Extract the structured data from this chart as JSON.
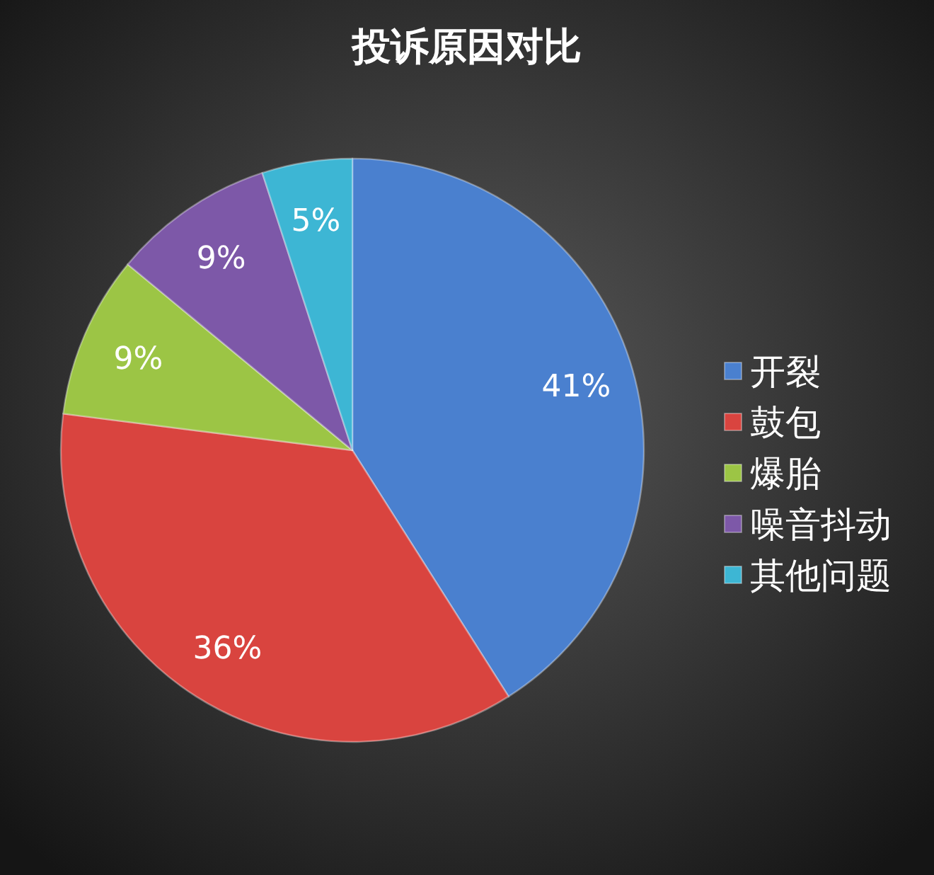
{
  "chart_data": {
    "type": "pie",
    "title": "投诉原因对比",
    "categories": [
      "开裂",
      "鼓包",
      "爆胎",
      "噪音抖动",
      "其他问题"
    ],
    "values": [
      41,
      36,
      9,
      9,
      5
    ],
    "colors": [
      "#4a80cf",
      "#d9443f",
      "#9cc545",
      "#7d58a8",
      "#3db6d4"
    ],
    "value_labels": [
      "41%",
      "36%",
      "9%",
      "9%",
      "5%"
    ],
    "legend": "right"
  }
}
